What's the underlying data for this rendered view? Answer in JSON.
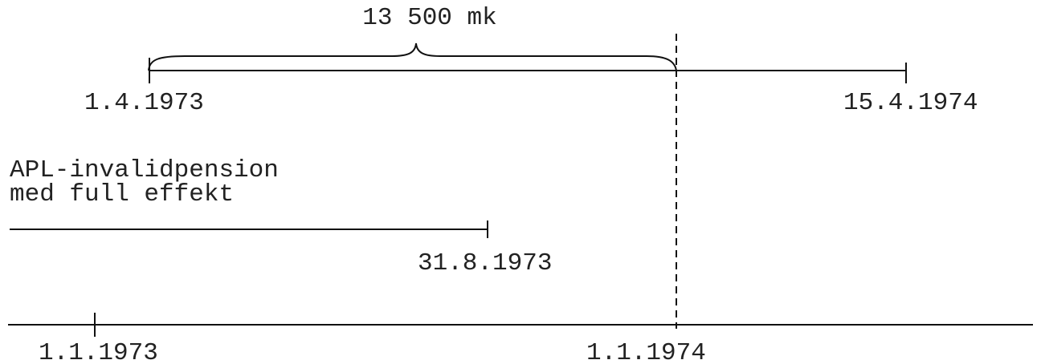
{
  "brace_label": "13 500 mk",
  "top_timeline": {
    "start_label": "1.4.1973",
    "end_label": "15.4.1974"
  },
  "pension": {
    "label_lines": [
      "APL-invalidpension",
      "med full effekt"
    ],
    "end_label": "31.8.1973"
  },
  "bottom_timeline": {
    "tick_labels": [
      "1.1.1973",
      "1.1.1974"
    ]
  }
}
